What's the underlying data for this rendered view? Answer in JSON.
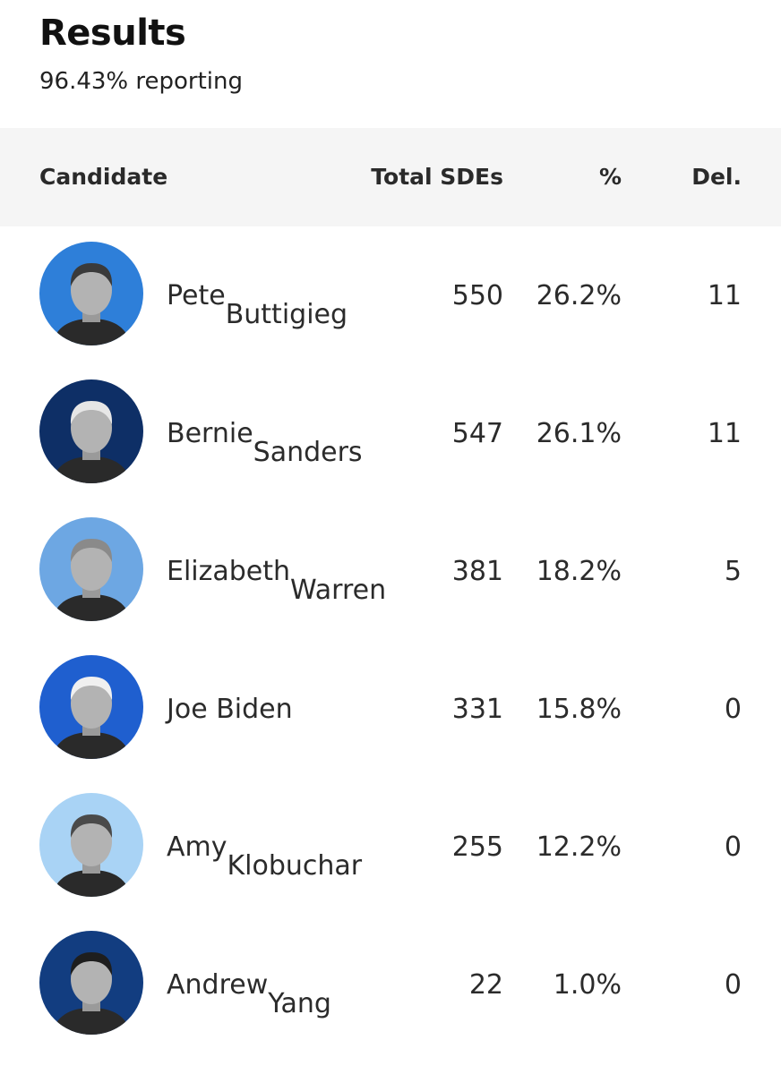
{
  "header": {
    "title": "Results",
    "reporting": "96.43% reporting"
  },
  "table": {
    "columns": {
      "candidate": "Candidate",
      "total_sdes": "Total SDEs",
      "percent": "%",
      "delegates": "Del."
    },
    "rows": [
      {
        "name": "Pete Buttigieg",
        "sdes": "550",
        "percent": "26.2%",
        "delegates": "11",
        "avatar_bg": "#2e7fd9"
      },
      {
        "name": "Bernie Sanders",
        "sdes": "547",
        "percent": "26.1%",
        "delegates": "11",
        "avatar_bg": "#0e2f66"
      },
      {
        "name": "Elizabeth Warren",
        "sdes": "381",
        "percent": "18.2%",
        "delegates": "5",
        "avatar_bg": "#6da7e3"
      },
      {
        "name": "Joe Biden",
        "sdes": "331",
        "percent": "15.8%",
        "delegates": "0",
        "avatar_bg": "#1f5fcf"
      },
      {
        "name": "Amy Klobuchar",
        "sdes": "255",
        "percent": "12.2%",
        "delegates": "0",
        "avatar_bg": "#a9d3f5"
      },
      {
        "name": "Andrew Yang",
        "sdes": "22",
        "percent": "1.0%",
        "delegates": "0",
        "avatar_bg": "#123d80"
      }
    ]
  }
}
